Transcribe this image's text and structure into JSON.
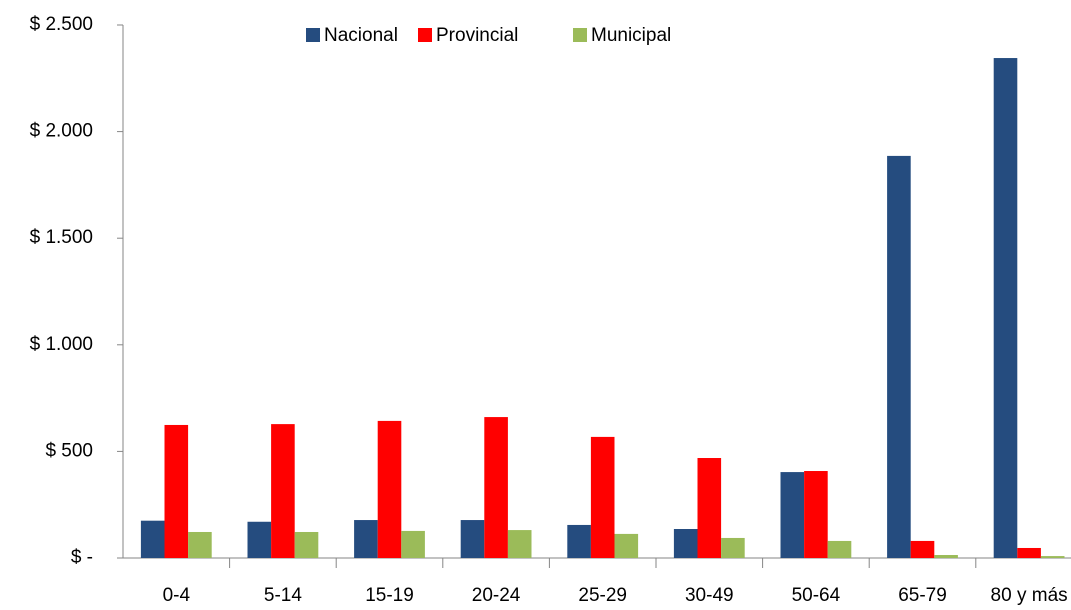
{
  "chart_data": {
    "type": "bar",
    "categories": [
      "0-4",
      "5-14",
      "15-19",
      "20-24",
      "25-29",
      "30-49",
      "50-64",
      "65-79",
      "80 y más"
    ],
    "series": [
      {
        "name": "Nacional",
        "color": "#254c7f",
        "values": [
          175,
          170,
          178,
          178,
          155,
          136,
          403,
          1886,
          2345
        ]
      },
      {
        "name": "Provincial",
        "color": "#ff0000",
        "values": [
          624,
          628,
          643,
          661,
          568,
          469,
          408,
          80,
          47
        ]
      },
      {
        "name": "Municipal",
        "color": "#9bbb59",
        "values": [
          122,
          122,
          127,
          131,
          113,
          94,
          80,
          14,
          9
        ]
      }
    ],
    "ylim": [
      0,
      2500
    ],
    "yticks": [
      {
        "value": 0,
        "label": "$ -"
      },
      {
        "value": 500,
        "label": "$ 500"
      },
      {
        "value": 1000,
        "label": "$ 1.000"
      },
      {
        "value": 1500,
        "label": "$ 1.500"
      },
      {
        "value": 2000,
        "label": "$ 2.000"
      },
      {
        "value": 2500,
        "label": "$ 2.500"
      }
    ],
    "legend": "top",
    "grid": false
  }
}
